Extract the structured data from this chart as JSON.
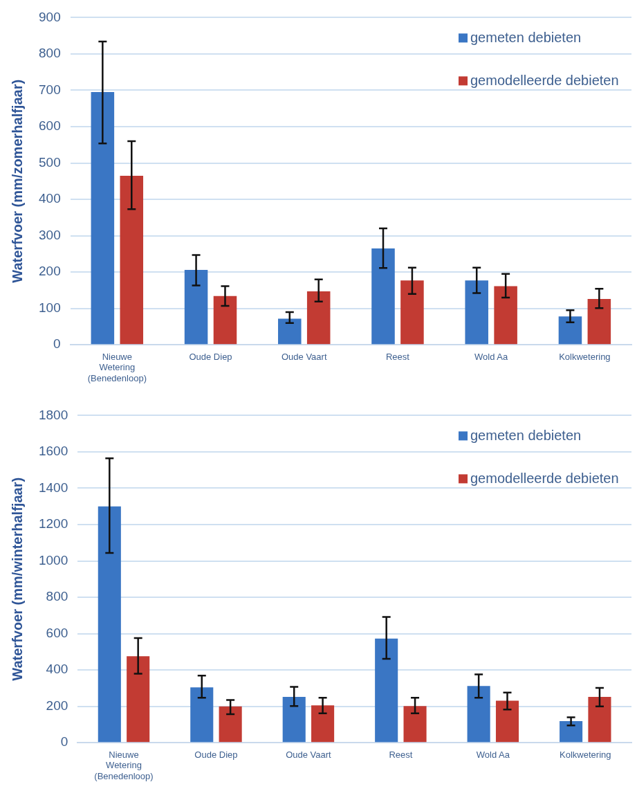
{
  "chart_data": [
    {
      "type": "bar",
      "ylabel": "Waterfvoer (mm/zomerhalfjaar)",
      "categories": [
        "Nieuwe Wetering (Benedenloop)",
        "Oude Diep",
        "Oude Vaart",
        "Reest",
        "Wold Aa",
        "Kolkwetering"
      ],
      "series": [
        {
          "name": "gemeten debieten",
          "color": "#3a76c4",
          "values": [
            695,
            206,
            72,
            265,
            177,
            78
          ],
          "errors": [
            [
              554,
              834
            ],
            [
              163,
              247
            ],
            [
              60,
              90
            ],
            [
              211,
              320
            ],
            [
              142,
              212
            ],
            [
              62,
              95
            ]
          ]
        },
        {
          "name": "gemodelleerde debieten",
          "color": "#c23b33",
          "values": [
            465,
            134,
            147,
            177,
            161,
            126
          ],
          "errors": [
            [
              373,
              560
            ],
            [
              107,
              161
            ],
            [
              119,
              180
            ],
            [
              140,
              212
            ],
            [
              130,
              195
            ],
            [
              101,
              154
            ]
          ]
        }
      ],
      "ylim": [
        0,
        900
      ],
      "yticks": [
        0,
        100,
        200,
        300,
        400,
        500,
        600,
        700,
        800,
        900
      ],
      "grid": "y",
      "legend": "top right"
    },
    {
      "type": "bar",
      "ylabel": "Waterfvoer (mm/winterhalfjaar)",
      "categories": [
        "Nieuwe Wetering (Benedenloop)",
        "Oude Diep",
        "Oude Vaart",
        "Reest",
        "Wold Aa",
        "Kolkwetering"
      ],
      "series": [
        {
          "name": "gemeten debieten",
          "color": "#3a76c4",
          "values": [
            1300,
            304,
            252,
            573,
            312,
            119
          ],
          "errors": [
            [
              1044,
              1565
            ],
            [
              247,
              369
            ],
            [
              202,
              307
            ],
            [
              461,
              692
            ],
            [
              247,
              376
            ],
            [
              95,
              140
            ]
          ]
        },
        {
          "name": "gemodelleerde debieten",
          "color": "#c23b33",
          "values": [
            476,
            200,
            205,
            202,
            231,
            252
          ],
          "errors": [
            [
              380,
              576
            ],
            [
              157,
              235
            ],
            [
              162,
              247
            ],
            [
              162,
              247
            ],
            [
              183,
              276
            ],
            [
              200,
              302
            ]
          ]
        }
      ],
      "ylim": [
        0,
        1800
      ],
      "yticks": [
        0,
        200,
        400,
        600,
        800,
        1000,
        1200,
        1400,
        1600,
        1800
      ],
      "grid": "y",
      "legend": "top right"
    }
  ]
}
